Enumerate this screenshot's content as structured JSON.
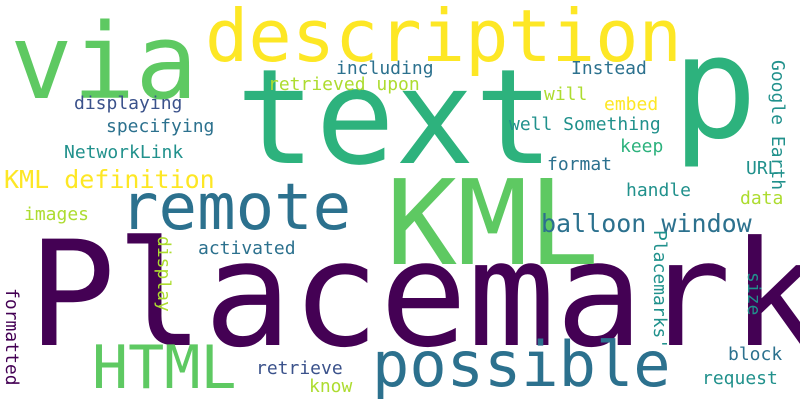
{
  "palette": {
    "dark_purple": "#440154",
    "indigo": "#3b528b",
    "steel_blue": "#2c718e",
    "teal": "#21918c",
    "green": "#2db27d",
    "light_green": "#5ec962",
    "yellow_green": "#addc30",
    "yellow": "#fde725",
    "background": "#ffffff"
  },
  "words": [
    {
      "text": "Placemark",
      "color": "dark_purple",
      "vertical": false
    },
    {
      "text": "text",
      "color": "green",
      "vertical": false
    },
    {
      "text": "KML",
      "color": "light_green",
      "vertical": false
    },
    {
      "text": "p",
      "color": "green",
      "vertical": false
    },
    {
      "text": "via",
      "color": "light_green",
      "vertical": false
    },
    {
      "text": "description",
      "color": "yellow",
      "vertical": false
    },
    {
      "text": "remote",
      "color": "steel_blue",
      "vertical": false
    },
    {
      "text": "possible",
      "color": "steel_blue",
      "vertical": false
    },
    {
      "text": "HTML",
      "color": "light_green",
      "vertical": false
    },
    {
      "text": "balloon window",
      "color": "steel_blue",
      "vertical": false
    },
    {
      "text": "KML definition",
      "color": "yellow",
      "vertical": false
    },
    {
      "text": "retrieved upon",
      "color": "yellow_green",
      "vertical": false
    },
    {
      "text": "including",
      "color": "steel_blue",
      "vertical": false
    },
    {
      "text": "Instead",
      "color": "steel_blue",
      "vertical": false
    },
    {
      "text": "displaying",
      "color": "indigo",
      "vertical": false
    },
    {
      "text": "will",
      "color": "yellow_green",
      "vertical": false
    },
    {
      "text": "embed",
      "color": "yellow",
      "vertical": false
    },
    {
      "text": "specifying",
      "color": "steel_blue",
      "vertical": false
    },
    {
      "text": "well Something",
      "color": "teal",
      "vertical": false
    },
    {
      "text": "keep",
      "color": "green",
      "vertical": false
    },
    {
      "text": "Google Earth",
      "color": "teal",
      "vertical": true
    },
    {
      "text": "NetworkLink",
      "color": "teal",
      "vertical": false
    },
    {
      "text": "format",
      "color": "steel_blue",
      "vertical": false
    },
    {
      "text": "URL",
      "color": "teal",
      "vertical": false
    },
    {
      "text": "handle",
      "color": "teal",
      "vertical": false
    },
    {
      "text": "data",
      "color": "yellow_green",
      "vertical": false
    },
    {
      "text": "images",
      "color": "yellow_green",
      "vertical": false
    },
    {
      "text": "display",
      "color": "yellow_green",
      "vertical": true
    },
    {
      "text": "activated",
      "color": "steel_blue",
      "vertical": false
    },
    {
      "text": "Placemarks'",
      "color": "teal",
      "vertical": true
    },
    {
      "text": "size",
      "color": "teal",
      "vertical": true
    },
    {
      "text": "formatted",
      "color": "dark_purple",
      "vertical": true
    },
    {
      "text": "retrieve",
      "color": "indigo",
      "vertical": false
    },
    {
      "text": "know",
      "color": "yellow_green",
      "vertical": false
    },
    {
      "text": "block",
      "color": "steel_blue",
      "vertical": false
    },
    {
      "text": "request",
      "color": "teal",
      "vertical": false
    }
  ]
}
